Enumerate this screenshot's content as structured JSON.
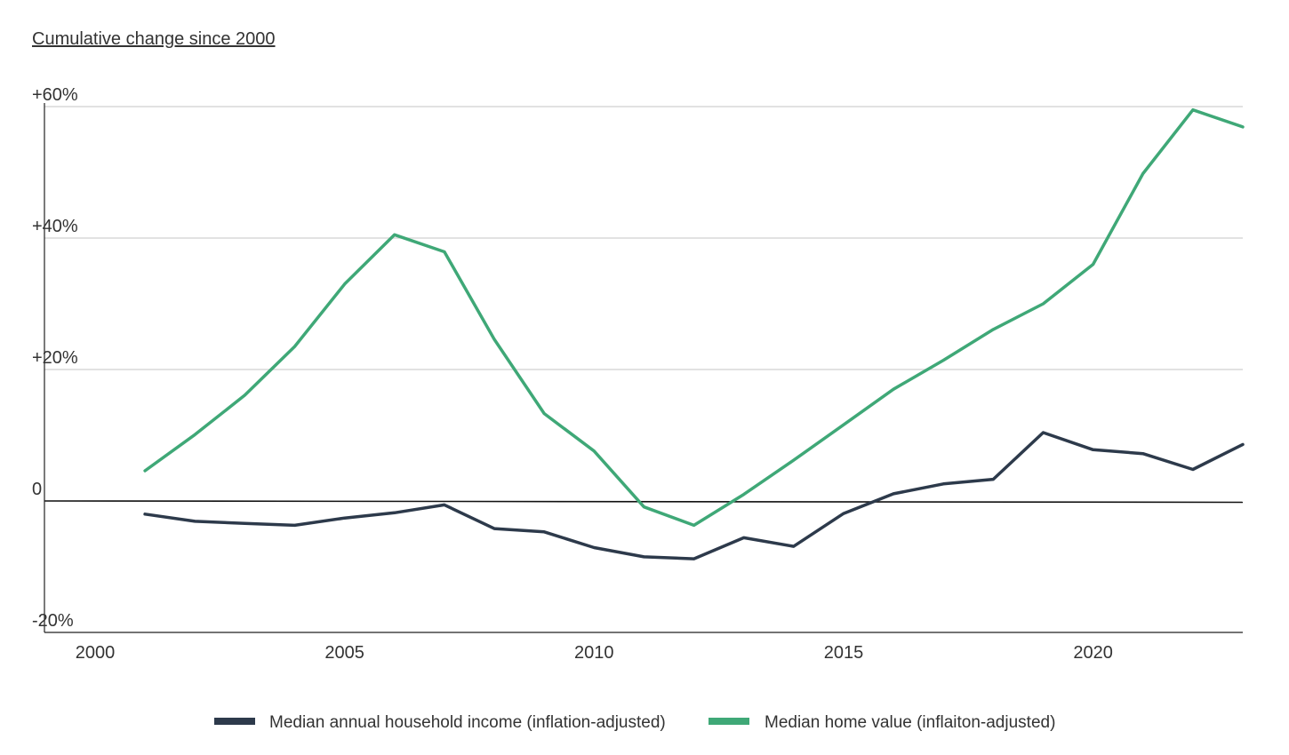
{
  "chart_data": {
    "type": "line",
    "title": "Cumulative change since 2000",
    "xlabel": "",
    "ylabel": "",
    "xlim": [
      2000,
      2023
    ],
    "ylim": [
      -20,
      60
    ],
    "x_ticks": [
      2000,
      2005,
      2010,
      2015,
      2020
    ],
    "y_ticks": [
      {
        "value": 60,
        "label": "+60%"
      },
      {
        "value": 40,
        "label": "+40%"
      },
      {
        "value": 20,
        "label": "+20%"
      },
      {
        "value": 0,
        "label": "0"
      },
      {
        "value": -20,
        "label": "-20%"
      }
    ],
    "grid": true,
    "legend_position": "bottom",
    "x": [
      2001,
      2002,
      2003,
      2004,
      2005,
      2006,
      2007,
      2008,
      2009,
      2010,
      2011,
      2012,
      2013,
      2014,
      2015,
      2016,
      2017,
      2018,
      2019,
      2020,
      2021,
      2022,
      2023
    ],
    "series": [
      {
        "name": "Median annual household income (inflation-adjusted)",
        "color": "#2d3a4b",
        "values": [
          -2.0,
          -3.1,
          -3.4,
          -3.7,
          -2.6,
          -1.8,
          -0.6,
          -4.2,
          -4.7,
          -7.1,
          -8.5,
          -8.8,
          -5.6,
          -6.9,
          -1.9,
          1.1,
          2.6,
          3.3,
          10.4,
          7.8,
          7.2,
          4.8,
          8.6
        ]
      },
      {
        "name": "Median home value (inflaiton-adjusted)",
        "color": "#3fa877",
        "values": [
          4.6,
          10.1,
          16.1,
          23.5,
          33.0,
          40.5,
          37.9,
          24.6,
          13.3,
          7.6,
          -0.9,
          -3.7,
          1.0,
          6.2,
          11.6,
          17.0,
          21.4,
          26.1,
          30.0,
          36.0,
          49.8,
          59.5,
          56.9
        ]
      }
    ]
  }
}
